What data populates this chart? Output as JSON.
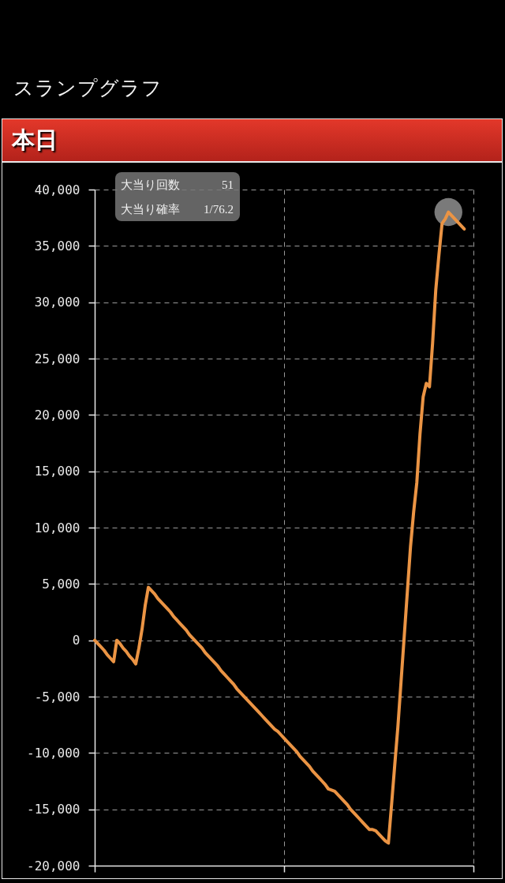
{
  "chart_data": {
    "type": "line",
    "title": "スランプグラフ",
    "subtitle": "本日",
    "annotations": [
      "大当り回数",
      "51",
      "大当り確率",
      "1/76.2"
    ],
    "categories": [
      null,
      null,
      null,
      null,
      null,
      null,
      null,
      null,
      null,
      null,
      null,
      null,
      null,
      null,
      null,
      null,
      null,
      null,
      null,
      null,
      null,
      null,
      null,
      null,
      null,
      null,
      null,
      null,
      null,
      null,
      null,
      null,
      null,
      null,
      null,
      null,
      null,
      null,
      null,
      null,
      null,
      null,
      null,
      null,
      null,
      null,
      null,
      null,
      null,
      null,
      null,
      null,
      null,
      null,
      null,
      null,
      null,
      null,
      null,
      null,
      null,
      null,
      null,
      null,
      null,
      null,
      null,
      null,
      null,
      null,
      null,
      null,
      null,
      null,
      null,
      null,
      null,
      null,
      null,
      null,
      null,
      null,
      null,
      null,
      null,
      null,
      null,
      null,
      null,
      null,
      null,
      null,
      null,
      null,
      null,
      null,
      null,
      null,
      null,
      null,
      null,
      null,
      null,
      null,
      null,
      null,
      null,
      null,
      null,
      null,
      null,
      null,
      null,
      null,
      null,
      null,
      null,
      null
    ],
    "series": [
      {
        "color": "#eb9444",
        "values": [
          0,
          -300,
          -600,
          -900,
          -1300,
          -1600,
          -1900,
          0,
          -300,
          -700,
          -1000,
          -1400,
          -1700,
          -2100,
          -700,
          1000,
          3100,
          4700,
          4400,
          4100,
          3700,
          3400,
          3100,
          2800,
          2500,
          2100,
          1800,
          1500,
          1200,
          900,
          500,
          200,
          -100,
          -400,
          -700,
          -1100,
          -1400,
          -1700,
          -2000,
          -2300,
          -2700,
          -3000,
          -3300,
          -3600,
          -3900,
          -4300,
          -4600,
          -4900,
          -5200,
          -5500,
          -5800,
          -6100,
          -6400,
          -6700,
          -7000,
          -7300,
          -7600,
          -7900,
          -8100,
          -8400,
          -8700,
          -9000,
          -9300,
          -9600,
          -9900,
          -10300,
          -10600,
          -10900,
          -11200,
          -11600,
          -11900,
          -12200,
          -12500,
          -12800,
          -13200,
          -13300,
          -13400,
          -13700,
          -14000,
          -14300,
          -14600,
          -15000,
          -15300,
          -15600,
          -15900,
          -16200,
          -16500,
          -16800,
          -16800,
          -16900,
          -17200,
          -17500,
          -17800,
          -18000,
          -14600,
          -11100,
          -7700,
          -3700,
          300,
          4300,
          8300,
          11400,
          14000,
          18300,
          21600,
          22800,
          22500,
          26400,
          31100,
          34200,
          37000,
          37400,
          38000,
          37700,
          37400,
          37100,
          36800,
          36500
        ]
      },
      {
        "type": "scatter",
        "color": "#7a7a7a",
        "values": [
          null,
          null,
          null,
          null,
          null,
          null,
          null,
          null,
          null,
          null,
          null,
          null,
          null,
          null,
          null,
          null,
          null,
          null,
          null,
          null,
          null,
          null,
          null,
          null,
          null,
          null,
          null,
          null,
          null,
          null,
          null,
          null,
          null,
          null,
          null,
          null,
          null,
          null,
          null,
          null,
          null,
          null,
          null,
          null,
          null,
          null,
          null,
          null,
          null,
          null,
          null,
          null,
          null,
          null,
          null,
          null,
          null,
          null,
          null,
          null,
          null,
          null,
          null,
          null,
          null,
          null,
          null,
          null,
          null,
          null,
          null,
          null,
          null,
          null,
          null,
          null,
          null,
          null,
          null,
          null,
          null,
          null,
          null,
          null,
          null,
          null,
          null,
          null,
          null,
          null,
          null,
          null,
          null,
          null,
          null,
          null,
          null,
          null,
          null,
          null,
          null,
          null,
          null,
          null,
          null,
          null,
          null,
          null,
          null,
          null,
          null,
          null,
          38000,
          null,
          null,
          null,
          null,
          null
        ]
      }
    ],
    "ylim": [
      -20000,
      40000
    ],
    "yticks": [
      {
        "value": -20000,
        "label": "-20,000"
      },
      {
        "value": -15000,
        "label": "-15,000"
      },
      {
        "value": -10000,
        "label": "-10,000"
      },
      {
        "value": -5000,
        "label": "-5,000"
      },
      {
        "value": 0,
        "label": "0"
      },
      {
        "value": 5000,
        "label": "5,000"
      },
      {
        "value": 10000,
        "label": "10,000"
      },
      {
        "value": 15000,
        "label": "15,000"
      },
      {
        "value": 20000,
        "label": "20,000"
      },
      {
        "value": 25000,
        "label": "25,000"
      },
      {
        "value": 30000,
        "label": "30,000"
      },
      {
        "value": 35000,
        "label": "35,000"
      },
      {
        "value": 40000,
        "label": "40,000"
      }
    ],
    "grid": true,
    "tick_labels": "y"
  }
}
